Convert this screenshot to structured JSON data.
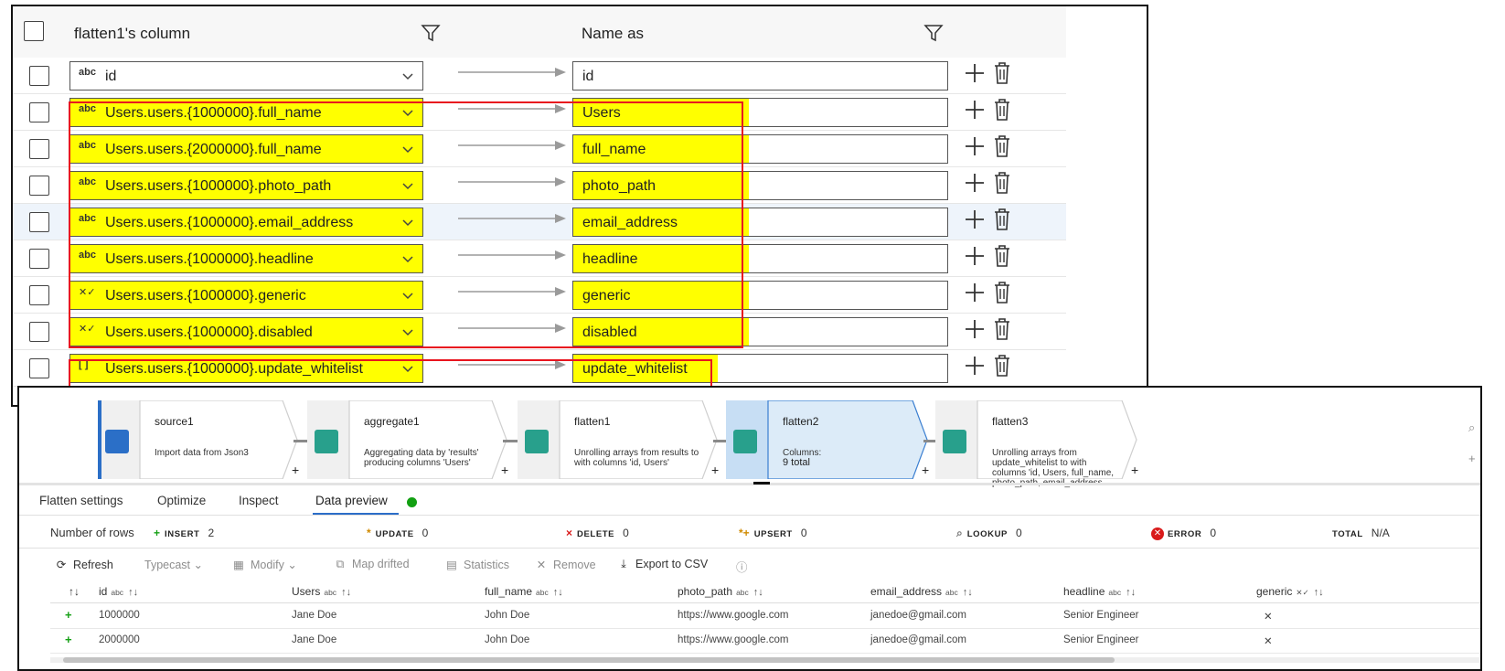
{
  "mapping": {
    "header": {
      "source_col_label": "flatten1's column",
      "name_as_label": "Name as"
    },
    "rows": [
      {
        "type": "abc",
        "source": "id",
        "name": "id",
        "highlight": false
      },
      {
        "type": "abc",
        "source": "Users.users.{1000000}.full_name",
        "name": "Users",
        "highlight": true
      },
      {
        "type": "abc",
        "source": "Users.users.{2000000}.full_name",
        "name": "full_name",
        "highlight": true
      },
      {
        "type": "abc",
        "source": "Users.users.{1000000}.photo_path",
        "name": "photo_path",
        "highlight": true
      },
      {
        "type": "abc",
        "source": "Users.users.{1000000}.email_address",
        "name": "email_address",
        "highlight": true
      },
      {
        "type": "abc",
        "source": "Users.users.{1000000}.headline",
        "name": "headline",
        "highlight": true
      },
      {
        "type": "✕✓",
        "source": "Users.users.{1000000}.generic",
        "name": "generic",
        "highlight": true
      },
      {
        "type": "✕✓",
        "source": "Users.users.{1000000}.disabled",
        "name": "disabled",
        "highlight": true
      },
      {
        "type": "[ ]",
        "source": "Users.users.{1000000}.update_whitelist",
        "name": "update_whitelist",
        "highlight": true
      }
    ]
  },
  "flow": {
    "nodes": [
      {
        "title": "source1",
        "desc": "Import data from Json3"
      },
      {
        "title": "aggregate1",
        "desc": "Aggregating data by 'results' producing columns 'Users'"
      },
      {
        "title": "flatten1",
        "desc": "Unrolling arrays from results to with columns 'id, Users'"
      },
      {
        "title": "flatten2",
        "desc_label": "Columns:",
        "desc_value": "9 total"
      },
      {
        "title": "flatten3",
        "desc": "Unrolling arrays from update_whitelist to with columns 'id, Users, full_name, photo_path, email_address"
      }
    ]
  },
  "tabs": [
    "Flatten settings",
    "Optimize",
    "Inspect",
    "Data preview"
  ],
  "counts": {
    "prefix": "Number of rows",
    "items": [
      {
        "icon": "+",
        "label": "INSERT",
        "value": "2"
      },
      {
        "icon": "*",
        "label": "UPDATE",
        "value": "0"
      },
      {
        "icon": "×",
        "label": "DELETE",
        "value": "0"
      },
      {
        "icon": "*+",
        "label": "UPSERT",
        "value": "0"
      },
      {
        "icon": "⌕",
        "label": "LOOKUP",
        "value": "0"
      },
      {
        "icon": "✕",
        "label": "ERROR",
        "value": "0"
      },
      {
        "icon": "",
        "label": "TOTAL",
        "value": "N/A"
      }
    ]
  },
  "toolbar": {
    "refresh": "Refresh",
    "typecast": "Typecast",
    "modify": "Modify",
    "map_drifted": "Map drifted",
    "statistics": "Statistics",
    "remove": "Remove",
    "export": "Export to CSV"
  },
  "grid": {
    "columns": [
      {
        "name": "id",
        "type": "abc"
      },
      {
        "name": "Users",
        "type": "abc"
      },
      {
        "name": "full_name",
        "type": "abc"
      },
      {
        "name": "photo_path",
        "type": "abc"
      },
      {
        "name": "email_address",
        "type": "abc"
      },
      {
        "name": "headline",
        "type": "abc"
      },
      {
        "name": "generic",
        "type": "✕✓"
      }
    ],
    "rows": [
      [
        "1000000",
        "Jane Doe",
        "John Doe",
        "https://www.google.com",
        "janedoe@gmail.com",
        "Senior Engineer",
        "✕"
      ],
      [
        "2000000",
        "Jane Doe",
        "John Doe",
        "https://www.google.com",
        "janedoe@gmail.com",
        "Senior Engineer",
        "✕"
      ]
    ]
  },
  "colors": {
    "highlight": "#ffff00",
    "annotation_border": "#e8141e",
    "selected_node": "#dcebf8",
    "preview_status": "#12a012",
    "accent": "#2c6ec8"
  }
}
